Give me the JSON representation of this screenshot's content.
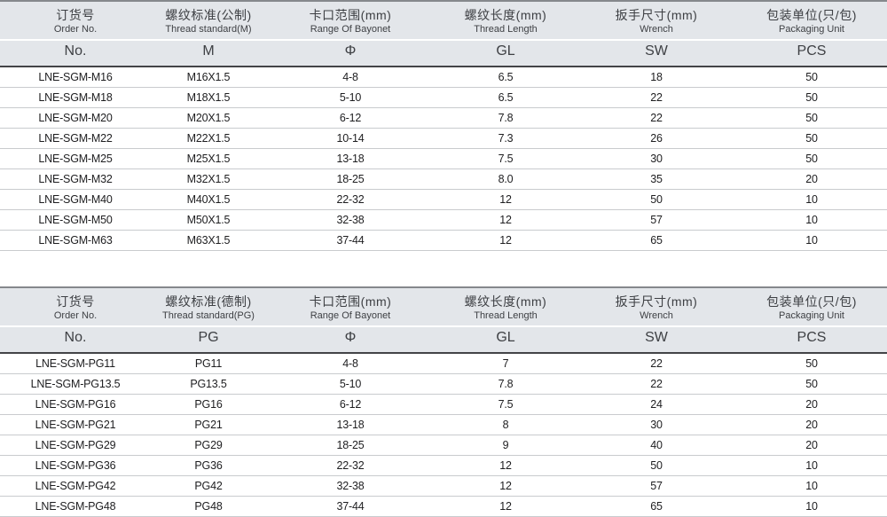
{
  "theme": {
    "page_background": "#ffffff",
    "header_background": "#e3e6ea",
    "table_top_border": "#85888c",
    "header_bottom_border": "#434447",
    "row_divider": "#c9cbce",
    "header_text": "#3e4044",
    "cell_text": "#1e1e20"
  },
  "tables": [
    {
      "name": "metric-thread-table",
      "columns": [
        {
          "zh": "订货号",
          "en": "Order No.",
          "symbol": "No."
        },
        {
          "zh": "螺纹标准(公制)",
          "en": "Thread standard(M)",
          "symbol": "M"
        },
        {
          "zh": "卡口范围(mm)",
          "en": "Range Of Bayonet",
          "symbol": "Φ"
        },
        {
          "zh": "螺纹长度(mm)",
          "en": "Thread Length",
          "symbol": "GL"
        },
        {
          "zh": "扳手尺寸(mm)",
          "en": "Wrench",
          "symbol": "SW"
        },
        {
          "zh": "包装单位(只/包)",
          "en": "Packaging Unit",
          "symbol": "PCS"
        }
      ],
      "rows": [
        [
          "LNE-SGM-M16",
          "M16X1.5",
          "4-8",
          "6.5",
          "18",
          "50"
        ],
        [
          "LNE-SGM-M18",
          "M18X1.5",
          "5-10",
          "6.5",
          "22",
          "50"
        ],
        [
          "LNE-SGM-M20",
          "M20X1.5",
          "6-12",
          "7.8",
          "22",
          "50"
        ],
        [
          "LNE-SGM-M22",
          "M22X1.5",
          "10-14",
          "7.3",
          "26",
          "50"
        ],
        [
          "LNE-SGM-M25",
          "M25X1.5",
          "13-18",
          "7.5",
          "30",
          "50"
        ],
        [
          "LNE-SGM-M32",
          "M32X1.5",
          "18-25",
          "8.0",
          "35",
          "20"
        ],
        [
          "LNE-SGM-M40",
          "M40X1.5",
          "22-32",
          "12",
          "50",
          "10"
        ],
        [
          "LNE-SGM-M50",
          "M50X1.5",
          "32-38",
          "12",
          "57",
          "10"
        ],
        [
          "LNE-SGM-M63",
          "M63X1.5",
          "37-44",
          "12",
          "65",
          "10"
        ]
      ]
    },
    {
      "name": "pg-thread-table",
      "columns": [
        {
          "zh": "订货号",
          "en": "Order No.",
          "symbol": "No."
        },
        {
          "zh": "螺纹标准(德制)",
          "en": "Thread standard(PG)",
          "symbol": "PG"
        },
        {
          "zh": "卡口范围(mm)",
          "en": "Range Of Bayonet",
          "symbol": "Φ"
        },
        {
          "zh": "螺纹长度(mm)",
          "en": "Thread Length",
          "symbol": "GL"
        },
        {
          "zh": "扳手尺寸(mm)",
          "en": "Wrench",
          "symbol": "SW"
        },
        {
          "zh": "包装单位(只/包)",
          "en": "Packaging Unit",
          "symbol": "PCS"
        }
      ],
      "rows": [
        [
          "LNE-SGM-PG11",
          "PG11",
          "4-8",
          "7",
          "22",
          "50"
        ],
        [
          "LNE-SGM-PG13.5",
          "PG13.5",
          "5-10",
          "7.8",
          "22",
          "50"
        ],
        [
          "LNE-SGM-PG16",
          "PG16",
          "6-12",
          "7.5",
          "24",
          "20"
        ],
        [
          "LNE-SGM-PG21",
          "PG21",
          "13-18",
          "8",
          "30",
          "20"
        ],
        [
          "LNE-SGM-PG29",
          "PG29",
          "18-25",
          "9",
          "40",
          "20"
        ],
        [
          "LNE-SGM-PG36",
          "PG36",
          "22-32",
          "12",
          "50",
          "10"
        ],
        [
          "LNE-SGM-PG42",
          "PG42",
          "32-38",
          "12",
          "57",
          "10"
        ],
        [
          "LNE-SGM-PG48",
          "PG48",
          "37-44",
          "12",
          "65",
          "10"
        ]
      ]
    }
  ]
}
